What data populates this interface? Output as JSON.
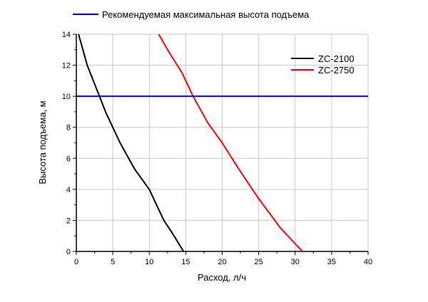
{
  "chart_data": {
    "type": "line",
    "title": "",
    "xlabel": "Расход, л/ч",
    "ylabel": "Высота подъема, м",
    "xlim": [
      0,
      40
    ],
    "ylim": [
      0,
      14
    ],
    "xticks": [
      0,
      5,
      10,
      15,
      20,
      25,
      30,
      35,
      40
    ],
    "yticks": [
      0,
      2,
      4,
      6,
      8,
      10,
      12,
      14
    ],
    "grid": true,
    "series": [
      {
        "name": "ZC-2100",
        "color": "#000000",
        "x": [
          0.3,
          1.5,
          3.0,
          4.0,
          6.0,
          8.0,
          10.0,
          12.0,
          13.0,
          14.7
        ],
        "y": [
          14.0,
          12.0,
          10.2,
          9.0,
          7.0,
          5.3,
          4.0,
          2.0,
          1.3,
          0.0
        ]
      },
      {
        "name": "ZC-2750",
        "color": "#ff0000",
        "x": [
          11.3,
          12.5,
          14.5,
          16.0,
          18.0,
          20.0,
          22.0,
          25.0,
          28.0,
          31.0
        ],
        "y": [
          14.0,
          13.0,
          11.5,
          10.0,
          8.3,
          7.0,
          5.5,
          3.4,
          1.5,
          0.0
        ]
      },
      {
        "name": "Рекомендуемая максимальная высота подъема",
        "color": "#0000ff",
        "x": [
          0,
          40
        ],
        "y": [
          10,
          10
        ]
      }
    ],
    "legend": {
      "top": "Рекомендуемая максимальная высота подъема",
      "inner": [
        "ZC-2100",
        "ZC-2750"
      ],
      "position": "top-right inside plot; reference-line legend above plot"
    }
  },
  "legend_top": {
    "label": "Рекомендуемая максимальная высота подъема",
    "color": "#0000ff"
  },
  "legend_inner": [
    {
      "label": "ZC-2100",
      "color": "#000000"
    },
    {
      "label": "ZC-2750",
      "color": "#ff0000"
    }
  ],
  "axes": {
    "x_title": "Расход, л/ч",
    "y_title": "Высота подъема, м",
    "x_ticks": [
      "0",
      "5",
      "10",
      "15",
      "20",
      "25",
      "30",
      "35",
      "40"
    ],
    "y_ticks": [
      "0",
      "2",
      "4",
      "6",
      "8",
      "10",
      "12",
      "14"
    ]
  }
}
